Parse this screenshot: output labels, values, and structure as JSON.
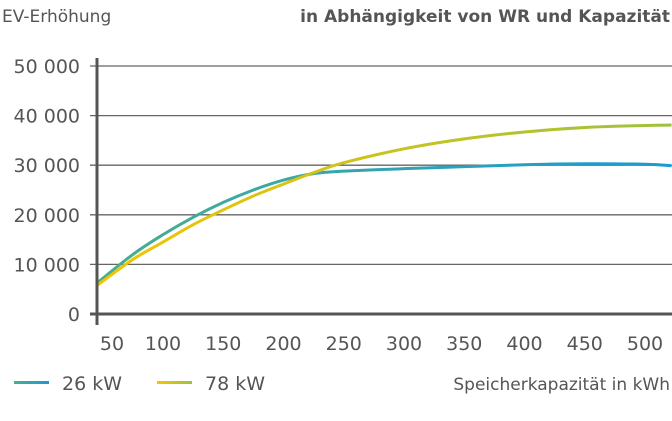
{
  "chart_data": {
    "type": "line",
    "title": "in Abhängigkeit von WR und Kapazität",
    "ylabel": "EV-Erhöhung",
    "xlabel": "Speicherkapazität in kWh",
    "xlim": [
      45,
      522
    ],
    "ylim": [
      0,
      50000
    ],
    "grid": true,
    "legend_position": "bottom-left",
    "x_ticks": [
      50,
      100,
      150,
      200,
      250,
      300,
      350,
      400,
      450,
      500
    ],
    "y_ticks": [
      0,
      10000,
      20000,
      30000,
      40000,
      50000
    ],
    "y_tick_labels": [
      "0",
      "10 000",
      "20 000",
      "30 000",
      "40 000",
      "50 000"
    ],
    "series": [
      {
        "name": "26 kW",
        "colors": [
          "#4aae8c",
          "#1a9ad6"
        ],
        "x": [
          45,
          75,
          100,
          125,
          150,
          175,
          200,
          225,
          250,
          300,
          350,
          400,
          450,
          500,
          522
        ],
        "y": [
          6200,
          12000,
          16000,
          19500,
          22500,
          25000,
          27000,
          28300,
          28800,
          29300,
          29700,
          30100,
          30300,
          30200,
          29900
        ]
      },
      {
        "name": "78 kW",
        "colors": [
          "#f5c400",
          "#9ec23c"
        ],
        "x": [
          45,
          75,
          100,
          125,
          150,
          175,
          200,
          225,
          250,
          300,
          350,
          400,
          450,
          500,
          522
        ],
        "y": [
          5700,
          11000,
          14500,
          18000,
          21000,
          23800,
          26200,
          28500,
          30500,
          33300,
          35300,
          36700,
          37600,
          38000,
          38100
        ]
      }
    ]
  }
}
